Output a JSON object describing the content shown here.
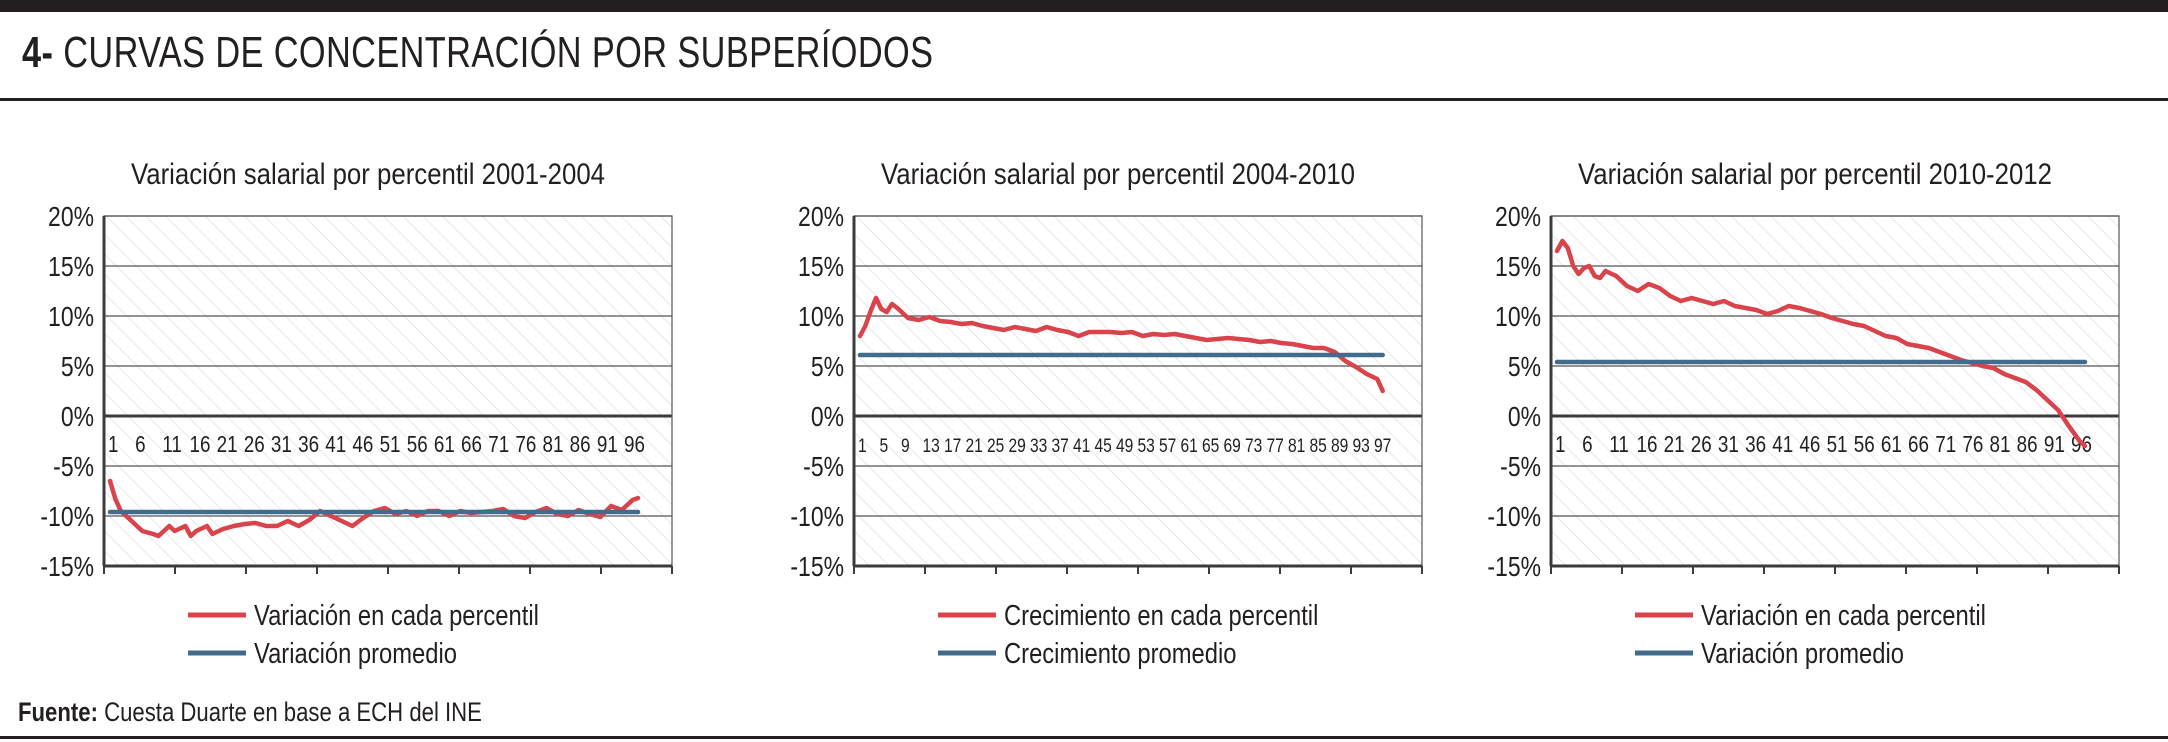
{
  "header": {
    "number": "4-",
    "title": "CURVAS DE CONCENTRACIÓN POR SUBPERÍODOS"
  },
  "source": {
    "label": "Fuente:",
    "text": "Cuesta Duarte en base a ECH del INE"
  },
  "colors": {
    "percentile_line": "#d9434c",
    "average_line": "#426c8c",
    "axis": "#3b3b3b",
    "grid": "#555555",
    "hatch": "#d9d9d9"
  },
  "chart_data": [
    {
      "type": "line",
      "title": "Variación salarial por percentil 2001-2004",
      "xlabel": "",
      "ylabel": "",
      "ylim": [
        -15,
        20
      ],
      "y_ticks": [
        "20%",
        "15%",
        "10%",
        "5%",
        "0%",
        "-5%",
        "-10%",
        "-15%"
      ],
      "x_tick_labels": [
        "1",
        "6",
        "11",
        "16",
        "21",
        "26",
        "31",
        "36",
        "41",
        "46",
        "51",
        "56",
        "61",
        "66",
        "71",
        "76",
        "81",
        "86",
        "91",
        "96"
      ],
      "x_range": [
        1,
        99
      ],
      "series": [
        {
          "name": "Variación en cada percentil",
          "color": "#d9434c",
          "x": [
            1,
            2,
            3,
            5,
            7,
            9,
            10,
            12,
            13,
            15,
            16,
            17,
            19,
            20,
            22,
            24,
            26,
            28,
            30,
            32,
            34,
            36,
            38,
            40,
            42,
            44,
            46,
            48,
            50,
            52,
            54,
            56,
            58,
            60,
            62,
            64,
            66,
            68,
            70,
            72,
            74,
            76,
            78,
            80,
            82,
            84,
            86,
            88,
            90,
            92,
            94,
            96,
            98,
            99
          ],
          "values": [
            -6.5,
            -8.3,
            -9.5,
            -10.5,
            -11.5,
            -11.8,
            -12.0,
            -11.0,
            -11.5,
            -11.0,
            -12.0,
            -11.5,
            -11.0,
            -11.8,
            -11.3,
            -11.0,
            -10.8,
            -10.7,
            -11.0,
            -11.0,
            -10.5,
            -11.0,
            -10.4,
            -9.5,
            -10.0,
            -10.5,
            -11.0,
            -10.2,
            -9.5,
            -9.2,
            -9.8,
            -9.5,
            -10.0,
            -9.5,
            -9.5,
            -10.0,
            -9.5,
            -9.7,
            -9.6,
            -9.5,
            -9.3,
            -10.0,
            -10.2,
            -9.6,
            -9.2,
            -9.8,
            -10.0,
            -9.4,
            -9.8,
            -10.1,
            -9.0,
            -9.4,
            -8.4,
            -8.2
          ]
        },
        {
          "name": "Variación promedio",
          "color": "#426c8c",
          "x": [
            1,
            99
          ],
          "values": [
            -9.6,
            -9.6
          ]
        }
      ],
      "legend": "bottom"
    },
    {
      "type": "line",
      "title": "Variación salarial por percentil 2004-2010",
      "xlabel": "",
      "ylabel": "",
      "ylim": [
        -15,
        20
      ],
      "y_ticks": [
        "20%",
        "15%",
        "10%",
        "5%",
        "0%",
        "-5%",
        "-10%",
        "-15%"
      ],
      "x_tick_labels": [
        "1",
        "5",
        "9",
        "13",
        "17",
        "21",
        "25",
        "29",
        "33",
        "37",
        "41",
        "45",
        "49",
        "53",
        "57",
        "61",
        "65",
        "69",
        "73",
        "77",
        "81",
        "85",
        "89",
        "93",
        "97"
      ],
      "x_range": [
        1,
        100
      ],
      "series": [
        {
          "name": "Crecimiento en cada percentil",
          "color": "#d9434c",
          "x": [
            1,
            2,
            3,
            4,
            5,
            6,
            7,
            8,
            10,
            12,
            14,
            16,
            18,
            20,
            22,
            24,
            26,
            28,
            30,
            32,
            34,
            36,
            38,
            40,
            42,
            44,
            46,
            48,
            50,
            52,
            54,
            56,
            58,
            60,
            62,
            64,
            66,
            68,
            70,
            72,
            74,
            76,
            78,
            80,
            82,
            84,
            86,
            88,
            90,
            92,
            94,
            96,
            98,
            99
          ],
          "values": [
            8.0,
            9.0,
            10.5,
            11.8,
            10.7,
            10.4,
            11.2,
            10.8,
            9.8,
            9.6,
            9.9,
            9.5,
            9.4,
            9.2,
            9.3,
            9.0,
            8.8,
            8.6,
            8.9,
            8.7,
            8.5,
            8.9,
            8.6,
            8.4,
            8.0,
            8.4,
            8.4,
            8.4,
            8.3,
            8.4,
            8.0,
            8.2,
            8.1,
            8.2,
            8.0,
            7.8,
            7.6,
            7.7,
            7.8,
            7.7,
            7.6,
            7.4,
            7.5,
            7.3,
            7.2,
            7.0,
            6.8,
            6.8,
            6.4,
            5.5,
            4.9,
            4.2,
            3.7,
            2.5
          ]
        },
        {
          "name": "Crecimiento promedio",
          "color": "#426c8c",
          "x": [
            1,
            99
          ],
          "values": [
            6.1,
            6.1
          ]
        }
      ],
      "legend": "bottom"
    },
    {
      "type": "line",
      "title": "Variación salarial por percentil 2010-2012",
      "xlabel": "",
      "ylabel": "",
      "ylim": [
        -15,
        20
      ],
      "y_ticks": [
        "20%",
        "15%",
        "10%",
        "5%",
        "0%",
        "-5%",
        "-10%",
        "-15%"
      ],
      "x_tick_labels": [
        "1",
        "6",
        "11",
        "16",
        "21",
        "26",
        "31",
        "36",
        "41",
        "46",
        "51",
        "56",
        "61",
        "66",
        "71",
        "76",
        "81",
        "86",
        "91",
        "96"
      ],
      "x_range": [
        1,
        99
      ],
      "series": [
        {
          "name": "Variación en cada percentil",
          "color": "#d9434c",
          "x": [
            1,
            2,
            3,
            4,
            5,
            6,
            7,
            8,
            9,
            10,
            12,
            14,
            16,
            18,
            20,
            22,
            24,
            26,
            28,
            30,
            32,
            34,
            36,
            38,
            40,
            42,
            44,
            46,
            48,
            50,
            52,
            54,
            56,
            58,
            60,
            62,
            64,
            66,
            68,
            70,
            72,
            74,
            76,
            78,
            80,
            82,
            84,
            86,
            88,
            90,
            92,
            94,
            96,
            98,
            99
          ],
          "values": [
            16.5,
            17.5,
            16.8,
            15.0,
            14.2,
            14.8,
            15.0,
            14.0,
            13.8,
            14.5,
            14.0,
            13.0,
            12.5,
            13.2,
            12.8,
            12.0,
            11.5,
            11.8,
            11.5,
            11.2,
            11.5,
            11.0,
            10.8,
            10.6,
            10.2,
            10.5,
            11.0,
            10.8,
            10.5,
            10.2,
            9.8,
            9.5,
            9.2,
            9.0,
            8.5,
            8.0,
            7.8,
            7.2,
            7.0,
            6.8,
            6.4,
            6.0,
            5.6,
            5.3,
            5.0,
            4.8,
            4.2,
            3.8,
            3.4,
            2.6,
            1.6,
            0.6,
            -1.0,
            -2.5,
            -3.0
          ]
        },
        {
          "name": "Variación promedio",
          "color": "#426c8c",
          "x": [
            1,
            99
          ],
          "values": [
            5.4,
            5.4
          ]
        }
      ],
      "legend": "bottom"
    }
  ]
}
